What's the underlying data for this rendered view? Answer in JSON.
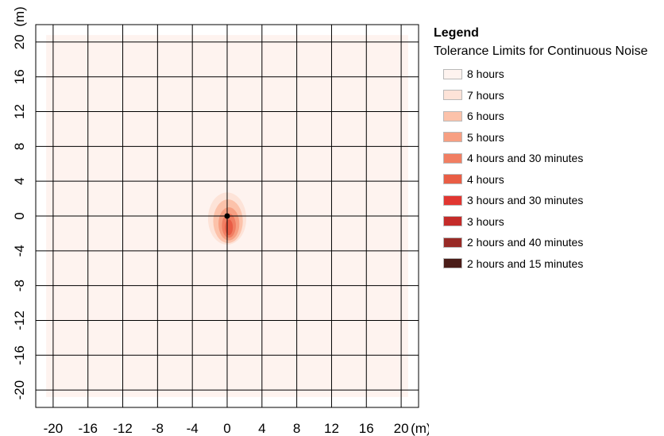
{
  "chart_data": {
    "type": "heatmap",
    "title": "",
    "x_unit": "(m)",
    "y_unit": "(m)",
    "x_ticks": [
      -20,
      -16,
      -12,
      -8,
      -4,
      0,
      4,
      8,
      12,
      16,
      20
    ],
    "y_ticks": [
      20,
      16,
      12,
      8,
      4,
      0,
      -4,
      -8,
      -12,
      -16,
      -20
    ],
    "xlim": [
      -22,
      22
    ],
    "ylim": [
      -22,
      22
    ],
    "grid": true,
    "source_point": {
      "x": 0,
      "y": 0
    },
    "hotspot": [
      {
        "x": 0,
        "y": -0.3,
        "rx": 2.2,
        "ry": 3.0,
        "level": "7 hours",
        "color": "#fde3d8"
      },
      {
        "x": 0.1,
        "y": -0.6,
        "rx": 1.7,
        "ry": 2.5,
        "level": "6 hours",
        "color": "#fcc2aa"
      },
      {
        "x": 0.2,
        "y": -0.9,
        "rx": 1.2,
        "ry": 1.9,
        "level": "5 hours",
        "color": "#f79f82"
      },
      {
        "x": 0.2,
        "y": -1.1,
        "rx": 0.8,
        "ry": 1.4,
        "level": "4 hours and 30 minutes",
        "color": "#f17e62"
      },
      {
        "x": 0.2,
        "y": -1.3,
        "rx": 0.45,
        "ry": 0.9,
        "level": "4 hours",
        "color": "#e95d45"
      }
    ],
    "legend": {
      "title": "Legend",
      "subtitle": "Tolerance Limits for Continuous Noise",
      "items": [
        {
          "label": "8 hours",
          "color": "#fef3ef"
        },
        {
          "label": "7 hours",
          "color": "#fde3d8"
        },
        {
          "label": "6 hours",
          "color": "#fcc2aa"
        },
        {
          "label": "5 hours",
          "color": "#f79f82"
        },
        {
          "label": "4 hours and 30 minutes",
          "color": "#f17e62"
        },
        {
          "label": "4 hours",
          "color": "#e95d45"
        },
        {
          "label": "3 hours and 30 minutes",
          "color": "#e13631"
        },
        {
          "label": "3 hours",
          "color": "#c42b29"
        },
        {
          "label": "2 hours and 40 minutes",
          "color": "#982a26"
        },
        {
          "label": "2 hours and 15 minutes",
          "color": "#4a1c18"
        }
      ]
    }
  }
}
